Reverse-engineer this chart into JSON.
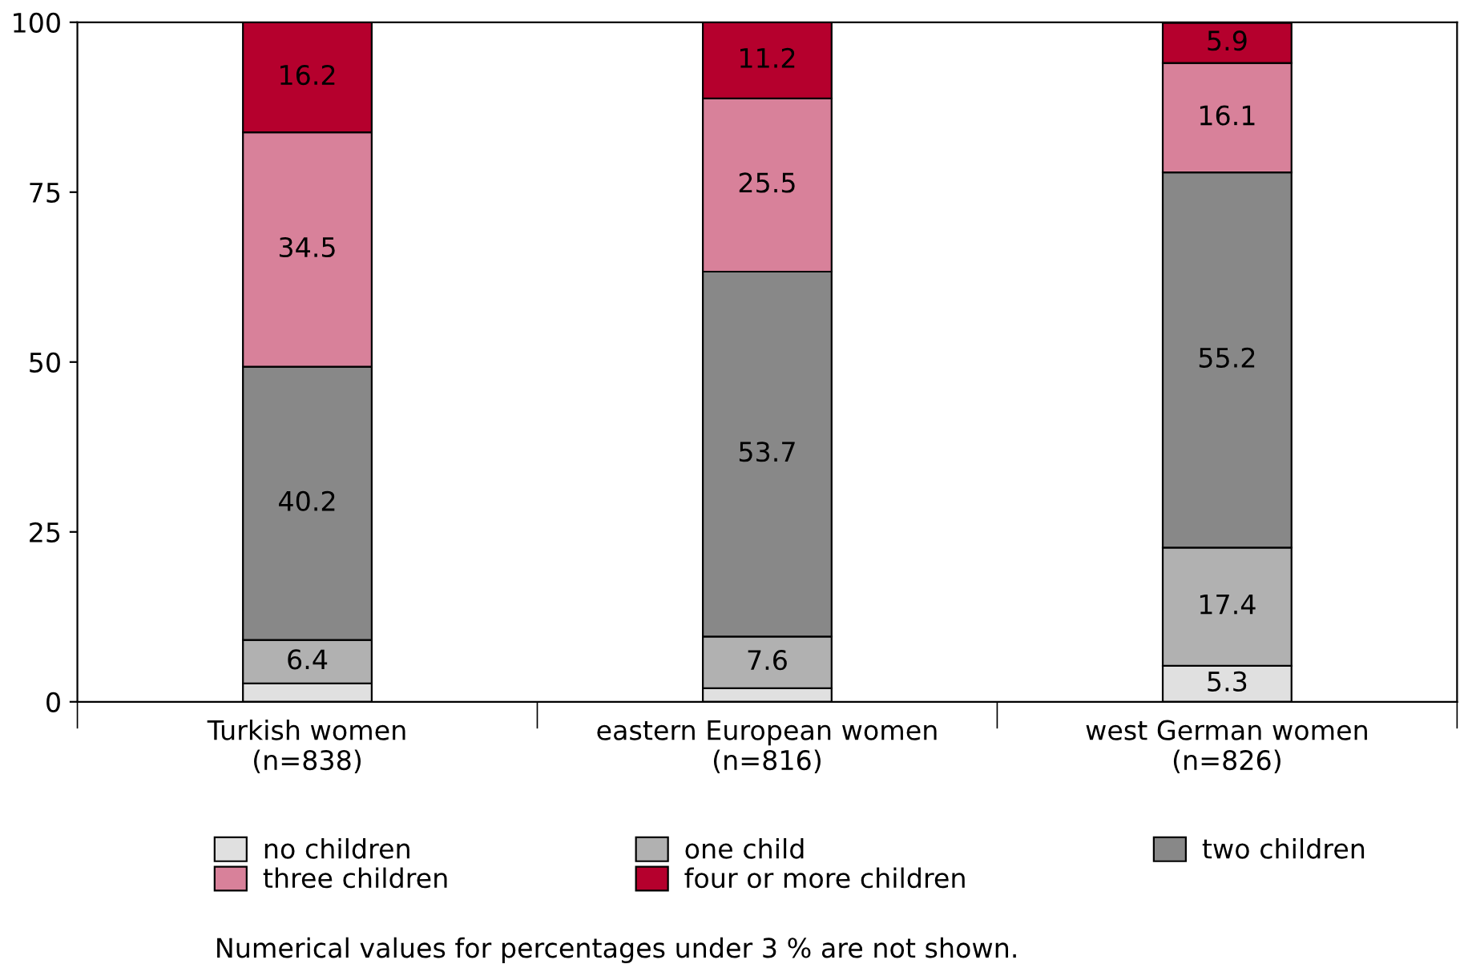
{
  "chart_data": {
    "type": "bar",
    "stacked": true,
    "categories": [
      "Turkish women\n(n=838)",
      "eastern European women\n(n=816)",
      "west German women\n(n=826)"
    ],
    "series": [
      {
        "name": "no children",
        "color": "#e0e0e0",
        "values": [
          2.7,
          2.0,
          5.3
        ],
        "value_labels": [
          null,
          null,
          "5.3"
        ]
      },
      {
        "name": "one child",
        "color": "#b1b1b1",
        "values": [
          6.4,
          7.6,
          17.4
        ],
        "value_labels": [
          "6.4",
          "7.6",
          "17.4"
        ]
      },
      {
        "name": "two children",
        "color": "#888888",
        "values": [
          40.2,
          53.7,
          55.2
        ],
        "value_labels": [
          "40.2",
          "53.7",
          "55.2"
        ]
      },
      {
        "name": "three children",
        "color": "#d8819a",
        "values": [
          34.5,
          25.5,
          16.1
        ],
        "value_labels": [
          "34.5",
          "25.5",
          "16.1"
        ]
      },
      {
        "name": "four or more children",
        "color": "#b5002d",
        "values": [
          16.2,
          11.2,
          5.9
        ],
        "value_labels": [
          "16.2",
          "11.2",
          "5.9"
        ]
      }
    ],
    "ylim": [
      0,
      100
    ],
    "yticks": [
      0,
      25,
      50,
      75,
      100
    ],
    "grid": false,
    "legend": "bottom",
    "annotations": [
      "Numerical values for percentages under 3 % are not shown."
    ]
  }
}
